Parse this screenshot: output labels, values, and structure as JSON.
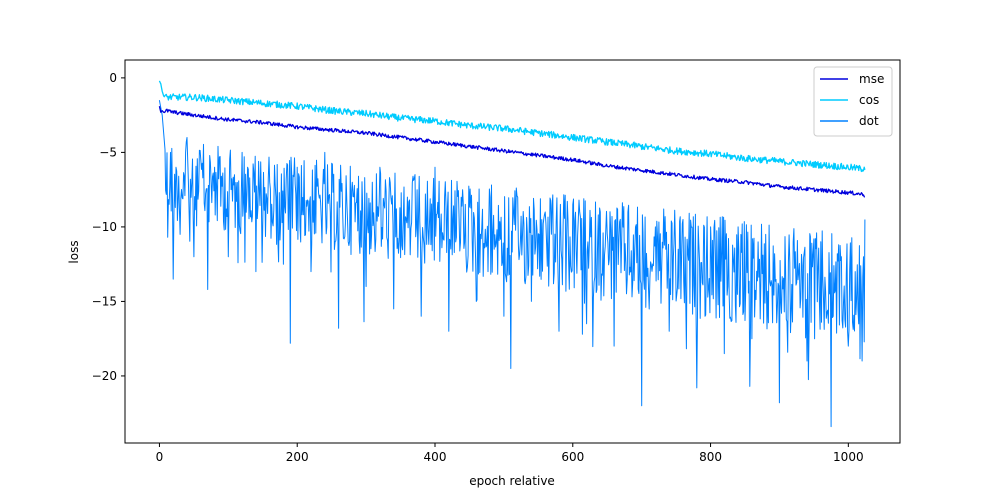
{
  "chart_data": {
    "type": "line",
    "title": "",
    "xlabel": "epoch relative",
    "ylabel": "loss",
    "xlim": [
      -50,
      1075
    ],
    "ylim": [
      -24.5,
      1.2
    ],
    "xticks": [
      0,
      200,
      400,
      600,
      800,
      1000
    ],
    "yticks": [
      0,
      -5,
      -10,
      -15,
      -20
    ],
    "grid": false,
    "legend_position": "top-right",
    "series": [
      {
        "name": "mse",
        "color": "#0000dd",
        "x": [
          0,
          2,
          4,
          6,
          10,
          20,
          50,
          100,
          150,
          200,
          250,
          300,
          350,
          400,
          450,
          500,
          550,
          600,
          650,
          700,
          750,
          800,
          850,
          900,
          950,
          1000,
          1020,
          1024
        ],
        "y": [
          -1.9,
          -2.3,
          -2.2,
          -2.3,
          -2.2,
          -2.3,
          -2.5,
          -2.8,
          -3.0,
          -3.3,
          -3.5,
          -3.7,
          -4.0,
          -4.3,
          -4.6,
          -4.9,
          -5.2,
          -5.5,
          -5.9,
          -6.2,
          -6.5,
          -6.8,
          -7.0,
          -7.3,
          -7.5,
          -7.7,
          -7.8,
          -7.9
        ]
      },
      {
        "name": "cos",
        "color": "#00ccff",
        "x": [
          0,
          2,
          4,
          6,
          10,
          20,
          50,
          100,
          150,
          200,
          250,
          300,
          350,
          400,
          450,
          500,
          550,
          600,
          650,
          700,
          750,
          800,
          850,
          900,
          950,
          1000,
          1020,
          1024
        ],
        "y": [
          -0.2,
          -0.4,
          -0.9,
          -1.2,
          -1.3,
          -1.3,
          -1.3,
          -1.5,
          -1.7,
          -1.9,
          -2.2,
          -2.4,
          -2.7,
          -2.9,
          -3.2,
          -3.4,
          -3.7,
          -4.0,
          -4.3,
          -4.6,
          -4.9,
          -5.1,
          -5.4,
          -5.6,
          -5.8,
          -6.0,
          -6.1,
          -6.0
        ]
      },
      {
        "name": "dot",
        "color": "#0080ff",
        "x": [
          0,
          4,
          8,
          12,
          16,
          20,
          24,
          30,
          40,
          50,
          60,
          70,
          80,
          100,
          120,
          140,
          160,
          180,
          190,
          200,
          220,
          240,
          260,
          280,
          300,
          320,
          340,
          360,
          380,
          400,
          420,
          440,
          460,
          480,
          500,
          510,
          520,
          540,
          560,
          580,
          600,
          620,
          640,
          660,
          680,
          700,
          720,
          740,
          760,
          780,
          800,
          820,
          840,
          860,
          880,
          900,
          920,
          940,
          960,
          975,
          990,
          1000,
          1010,
          1020,
          1024
        ],
        "y": [
          -1.5,
          -2.5,
          -4.8,
          -10.7,
          -5.0,
          -13.5,
          -6.0,
          -10.5,
          -4.0,
          -12.0,
          -5.5,
          -14.2,
          -6.0,
          -12.0,
          -5.0,
          -13.0,
          -7.0,
          -12.5,
          -17.8,
          -6.0,
          -13.0,
          -5.0,
          -16.8,
          -7.0,
          -14.0,
          -6.0,
          -15.5,
          -8.0,
          -16.0,
          -6.0,
          -17.0,
          -7.5,
          -15.0,
          -8.0,
          -16.0,
          -19.5,
          -8.0,
          -15.0,
          -9.0,
          -17.0,
          -8.5,
          -16.5,
          -9.0,
          -18.0,
          -9.0,
          -22.0,
          -10.0,
          -17.0,
          -9.5,
          -20.8,
          -10.0,
          -18.5,
          -10.0,
          -17.5,
          -10.5,
          -21.8,
          -11.0,
          -19.0,
          -11.0,
          -23.4,
          -12.0,
          -18.0,
          -13.0,
          -19.0,
          -9.5
        ]
      }
    ]
  }
}
